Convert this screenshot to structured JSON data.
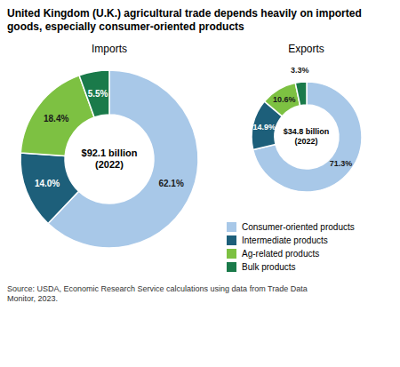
{
  "title": "United Kingdom (U.K.) agricultural trade depends heavily on imported\ngoods, especially consumer-oriented products",
  "source": "Source: USDA, Economic Research Service calculations using data from Trade Data\nMonitor, 2023.",
  "chart_data": [
    {
      "type": "pie",
      "title": "Imports",
      "annotation": "$92.1 billion\n(2022)",
      "categories": [
        "Consumer-oriented products",
        "Intermediate products",
        "Ag-related products",
        "Bulk products"
      ],
      "values": [
        62.1,
        14.0,
        18.4,
        5.5
      ],
      "value_labels": [
        "62.1%",
        "14.0%",
        "18.4%",
        "5.5%"
      ],
      "colors": [
        "#a8c8e8",
        "#1d5f7a",
        "#7dc142",
        "#1a7a4a"
      ],
      "data_labels": true
    },
    {
      "type": "pie",
      "title": "Exports",
      "annotation": "$34.8 billion\n(2022)",
      "categories": [
        "Consumer-oriented products",
        "Intermediate products",
        "Ag-related products",
        "Bulk products"
      ],
      "values": [
        71.3,
        14.9,
        10.6,
        3.3
      ],
      "value_labels": [
        "71.3%",
        "14.9%",
        "10.6%",
        "3.3%"
      ],
      "colors": [
        "#a8c8e8",
        "#1d5f7a",
        "#7dc142",
        "#1a7a4a"
      ],
      "data_labels": true
    }
  ]
}
